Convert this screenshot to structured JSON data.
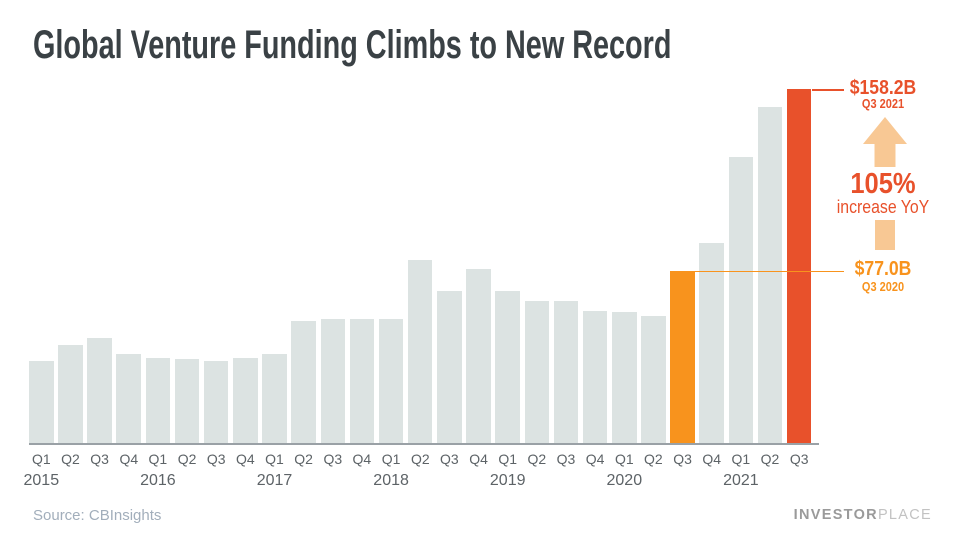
{
  "title": "Global Venture Funding Climbs to New Record",
  "chart_data": {
    "type": "bar",
    "title": "Global Venture Funding Climbs to New Record",
    "unit": "USD billions",
    "x": [
      "Q1 2015",
      "Q2 2015",
      "Q3 2015",
      "Q4 2015",
      "Q1 2016",
      "Q2 2016",
      "Q3 2016",
      "Q4 2016",
      "Q1 2017",
      "Q2 2017",
      "Q3 2017",
      "Q4 2017",
      "Q1 2018",
      "Q2 2018",
      "Q3 2018",
      "Q4 2018",
      "Q1 2019",
      "Q2 2019",
      "Q3 2019",
      "Q4 2019",
      "Q1 2020",
      "Q2 2020",
      "Q3 2020",
      "Q4 2020",
      "Q1 2021",
      "Q2 2021",
      "Q3 2021"
    ],
    "values": [
      36.5,
      44,
      47,
      40,
      38,
      37.5,
      36.5,
      38,
      40,
      54.5,
      55.5,
      55.5,
      55.5,
      82,
      68,
      78,
      68,
      63.5,
      63.5,
      59,
      58.5,
      57,
      77.0,
      89.5,
      128,
      150,
      158.2
    ],
    "years": [
      "2015",
      "2016",
      "2017",
      "2018",
      "2019",
      "2020",
      "2021"
    ],
    "ylim": [
      0,
      165
    ],
    "grid": false,
    "legend": false,
    "bar_color_default": "#DCE3E2",
    "highlights": [
      {
        "index": 22,
        "period": "Q3 2020",
        "value": 77.0,
        "color": "#F8931D"
      },
      {
        "index": 26,
        "period": "Q3 2021",
        "value": 158.2,
        "color": "#E8512B"
      }
    ]
  },
  "annotations": {
    "peak_value": "$158.2B",
    "peak_period": "Q3 2021",
    "pct": "105%",
    "pct_label": "increase YoY",
    "base_value": "$77.0B",
    "base_period": "Q3 2020"
  },
  "footer": {
    "source": "Source: CBInsights",
    "logo_bold": "INVESTOR",
    "logo_light": "PLACE"
  },
  "icons": {
    "up_arrow": "up-arrow-icon",
    "stem": "arrow-stem-segment"
  },
  "colors": {
    "accent_red": "#E8512B",
    "accent_orange": "#F8931D",
    "accent_peach": "#F8C894",
    "bar_gray": "#DCE3E2",
    "title_dark": "#3A4145",
    "axis_gray": "#9AA1A6",
    "label_gray": "#5D6367",
    "source_gray": "#A2AEBB",
    "logo_gray_bold": "#9A9A9A",
    "logo_gray_light": "#C2C2C2"
  }
}
